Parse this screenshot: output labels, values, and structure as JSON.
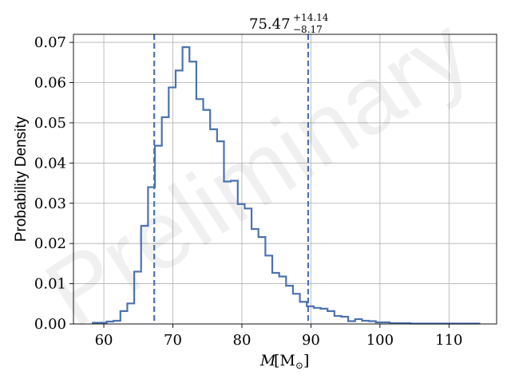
{
  "chart_data": {
    "type": "histogram",
    "xlabel_main": "M",
    "xlabel_unit": "[M",
    "xlabel_sub": "⊙",
    "xlabel_end": "]",
    "ylabel": "Probability Density",
    "title_value": "75.47",
    "title_upper": "+14.14",
    "title_lower": "−8.17",
    "watermark": "Preliminary",
    "xlim": [
      55.6,
      116.9
    ],
    "ylim": [
      0,
      0.072
    ],
    "x_ticks": [
      60,
      70,
      80,
      90,
      100,
      110
    ],
    "y_ticks": [
      0.0,
      0.01,
      0.02,
      0.03,
      0.04,
      0.05,
      0.06,
      0.07
    ],
    "y_tick_labels": [
      "0.00",
      "0.01",
      "0.02",
      "0.03",
      "0.04",
      "0.05",
      "0.06",
      "0.07"
    ],
    "grid": true,
    "color": "#4c72b0",
    "bin_edges": [
      58.4,
      59.4,
      60.4,
      61.4,
      62.4,
      63.4,
      64.4,
      65.4,
      66.4,
      67.4,
      68.4,
      69.4,
      70.4,
      71.4,
      72.4,
      73.4,
      74.4,
      75.4,
      76.4,
      77.4,
      78.4,
      79.4,
      80.4,
      81.4,
      82.4,
      83.4,
      84.4,
      85.4,
      86.4,
      87.4,
      88.4,
      89.4,
      90.4,
      91.4,
      92.4,
      93.4,
      94.4,
      95.4,
      96.4,
      97.4,
      98.4,
      99.4,
      100.4,
      101.4,
      102.4,
      103.4,
      104.4,
      105.4,
      106.4,
      107.4,
      108.4,
      109.4,
      110.4,
      111.4,
      112.4,
      113.4,
      114.4
    ],
    "densities": [
      0.0003,
      0.0003,
      0.0006,
      0.0008,
      0.0032,
      0.0051,
      0.013,
      0.0244,
      0.034,
      0.0443,
      0.0514,
      0.0588,
      0.063,
      0.0688,
      0.0652,
      0.0559,
      0.0532,
      0.0484,
      0.0454,
      0.0354,
      0.0356,
      0.0298,
      0.0287,
      0.0236,
      0.0216,
      0.017,
      0.0127,
      0.0118,
      0.0095,
      0.0075,
      0.0055,
      0.0044,
      0.004,
      0.0038,
      0.0032,
      0.002,
      0.0018,
      0.0007,
      0.0012,
      0.0008,
      0.0007,
      0.0004,
      0.0004,
      0.0002,
      0.0002,
      0.0002,
      0.0001,
      0.0001,
      0.0001,
      0.0001,
      0.0001,
      0.0001,
      0.0001,
      0.0001,
      0.0001,
      0.0001
    ],
    "vlines": [
      67.3,
      89.6
    ]
  }
}
